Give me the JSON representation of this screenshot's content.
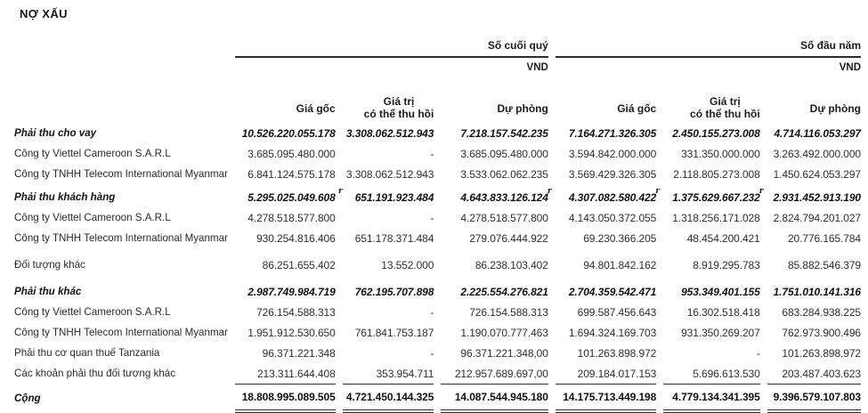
{
  "title": "NỢ XẤU",
  "header": {
    "period_end": "Số cuối quý",
    "period_start": "Số đầu năm",
    "currency": "VND",
    "columns": {
      "cost": "Giá gốc",
      "recoverable_line1": "Giá trị",
      "recoverable_line2": "có thể thu hồi",
      "provision": "Dự phòng"
    }
  },
  "table": {
    "rows": [
      {
        "label": "Phải thu cho vay",
        "type": "group",
        "values": [
          "10.526.220.055.178",
          "3.308.062.512.943",
          "7.218.157.542.235",
          "7.164.271.326.305",
          "2.450.155.273.008",
          "4.714.116.053.297"
        ]
      },
      {
        "label": "Công ty Viettel Cameroon S.A.R.L",
        "type": "item",
        "values": [
          "3.685.095.480.000",
          "-",
          "3.685.095.480.000",
          "3.594.842.000.000",
          "331.350.000.000",
          "3.263.492.000.000"
        ]
      },
      {
        "label": "Công ty TNHH Telecom International Myanmar",
        "type": "item",
        "values": [
          "6.841.124.575.178",
          "3.308.062.512.943",
          "3.533.062.062.235",
          "3.569.429.326.305",
          "2.118.805.273.008",
          "1.450.624.053.297"
        ]
      },
      {
        "label": "Phải thu khách hàng",
        "type": "group",
        "gap": "sm",
        "values": [
          "5.295.025.049.608",
          "651.191.923.484",
          "4.643.833.126.124",
          "4.307.082.580.422",
          "1.375.629.667.232",
          "2.931.452.913.190"
        ],
        "markers": {
          "0": "after",
          "3": "before",
          "4": "before",
          "5": "before"
        }
      },
      {
        "label": "Công ty Viettel Cameroon S.A.R.L",
        "type": "item",
        "values": [
          "4.278.518.577.800",
          "-",
          "4.278.518.577.800",
          "4.143.050.372.055",
          "1.318.256.171.028",
          "2.824.794.201.027"
        ]
      },
      {
        "label": "Công ty TNHH Telecom International Myanmar",
        "type": "item",
        "values": [
          "930.254.816.406",
          "651.178.371.484",
          "279.076.444.922",
          "69.230.366.205",
          "48.454.200.421",
          "20.776.165.784"
        ]
      },
      {
        "label": "Đối tượng khác",
        "type": "item",
        "gap": "lg",
        "values": [
          "86.251.655.402",
          "13.552.000",
          "86.238.103.402",
          "94.801.842.162",
          "8.919.295.783",
          "85.882.546.379"
        ]
      },
      {
        "label": "Phải thu khác",
        "type": "group",
        "gap": "lg",
        "values": [
          "2.987.749.984.719",
          "762.195.707.898",
          "2.225.554.276.821",
          "2.704.359.542.471",
          "953.349.401.155",
          "1.751.010.141.316"
        ]
      },
      {
        "label": "Công ty Viettel Cameroon S.A.R.L",
        "type": "item",
        "values": [
          "726.154.588.313",
          "-",
          "726.154.588.313",
          "699.587.456.643",
          "16.302.518.418",
          "683.284.938.225"
        ]
      },
      {
        "label": "Công ty TNHH Telecom International Myanmar",
        "type": "item",
        "values": [
          "1.951.912.530.650",
          "761.841.753.187",
          "1.190.070.777.463",
          "1.694.324.169.703",
          "931.350.269.207",
          "762.973.900.496"
        ]
      },
      {
        "label": "Phải thu cơ quan thuế Tanzania",
        "type": "item",
        "values": [
          "96.371.221.348",
          "-",
          "96.371.221.348,00",
          "101.263.898.972",
          "-",
          "101.263.898.972"
        ]
      },
      {
        "label": "Các khoản phải thu đối tượng khác",
        "type": "item",
        "values": [
          "213.311.644.408",
          "353.954.711",
          "212.957.689.697,00",
          "209.184.017.153",
          "5.696.613.530",
          "203.487.403.623"
        ]
      },
      {
        "label": "Cộng",
        "type": "total",
        "values": [
          "18.808.995.089.505",
          "4.721.450.144.325",
          "14.087.544.945.180",
          "14.175.713.449.198",
          "4.779.134.341.395",
          "9.396.579.107.803"
        ]
      }
    ]
  }
}
